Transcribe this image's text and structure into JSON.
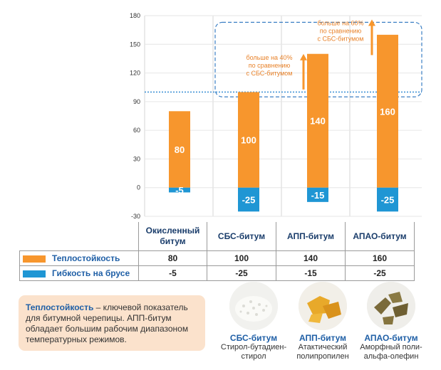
{
  "chart_data": {
    "type": "bar",
    "categories": [
      "Окисленный битум",
      "СБС-битум",
      "АПП-битум",
      "АПАО-битум"
    ],
    "series": [
      {
        "name": "Теплостойкость",
        "values": [
          80,
          100,
          140,
          160
        ],
        "color": "#f7962d"
      },
      {
        "name": "Гибкость на брусе",
        "values": [
          -5,
          -25,
          -15,
          -25
        ],
        "color": "#1f96d4"
      }
    ],
    "ylim": [
      -30,
      180
    ],
    "yticks": [
      -30,
      0,
      30,
      60,
      90,
      120,
      150,
      180
    ],
    "reference_line": 100,
    "annotations": [
      {
        "category": "АПП-битум",
        "lines": [
          "больше на 40%",
          "по сравнению",
          "с СБС-битумом"
        ]
      },
      {
        "category": "АПАО-битум",
        "lines": [
          "больше на 60%",
          "по сравнению",
          "с СБС-битумом"
        ]
      }
    ]
  },
  "table": {
    "headers": [
      "Окисленный битум",
      "СБС-битум",
      "АПП-битум",
      "АПАО-битум"
    ],
    "header_lines": [
      [
        "Окисленный",
        "битум"
      ],
      [
        "СБС-битум"
      ],
      [
        "АПП-битум"
      ],
      [
        "АПАО-битум"
      ]
    ],
    "rows": [
      {
        "label": "Теплостойкость",
        "color": "#f7962d",
        "values": [
          "80",
          "100",
          "140",
          "160"
        ]
      },
      {
        "label": "Гибкость на брусе",
        "color": "#1f96d4",
        "values": [
          "-5",
          "-25",
          "-15",
          "-25"
        ]
      }
    ]
  },
  "note": {
    "term": "Теплостойкость",
    "text": " – ключевой показатель для битумной черепицы. АПП-битум обладает большим рабочим диапазоном температурных режимов."
  },
  "materials": [
    {
      "name": "СБС-битум",
      "desc_lines": [
        "Стирол-бутадиен-",
        "стирол"
      ],
      "icon": "white-granules-icon"
    },
    {
      "name": "АПП-битум",
      "desc_lines": [
        "Атактический",
        "полипропилен"
      ],
      "icon": "yellow-chunks-icon"
    },
    {
      "name": "АПАО-битум",
      "desc_lines": [
        "Аморфный поли-",
        "альфа-олефин"
      ],
      "icon": "dark-pieces-icon"
    }
  ]
}
